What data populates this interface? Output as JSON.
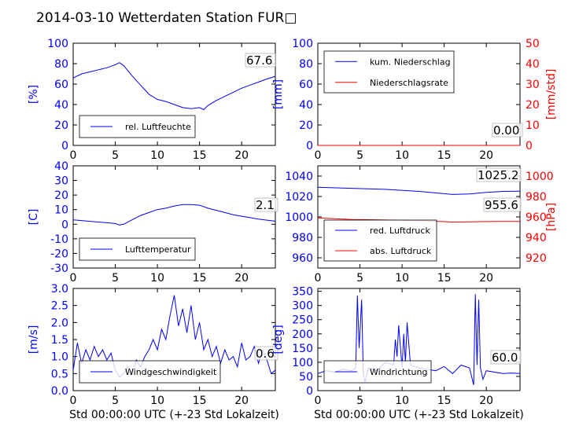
{
  "title": "2014-03-10 Wetterdaten Station FUR□",
  "chart_data": [
    {
      "id": "humidity",
      "type": "line",
      "ylabel": "[%]",
      "ylim": [
        0,
        100
      ],
      "yticks": [
        0,
        20,
        40,
        60,
        80,
        100
      ],
      "xlim": [
        0,
        24
      ],
      "xticks": [
        0,
        5,
        10,
        15,
        20
      ],
      "legend": "bottom-left",
      "last_value": "67.6",
      "series": [
        {
          "name": "rel. Luftfeuchte",
          "color": "#0000ff",
          "x": [
            0,
            1,
            2,
            3,
            4,
            5,
            5.5,
            6,
            7,
            8,
            9,
            10,
            11,
            12,
            13,
            14,
            15,
            15.5,
            16,
            17,
            18,
            19,
            20,
            21,
            22,
            23,
            24
          ],
          "y": [
            66,
            70,
            72,
            74,
            76,
            79,
            81,
            78,
            68,
            59,
            50,
            45,
            43,
            40,
            37,
            36,
            37,
            35,
            39,
            44,
            48,
            52,
            56,
            59,
            62,
            65,
            67.6
          ]
        }
      ]
    },
    {
      "id": "precip",
      "type": "line",
      "ylabel": "[mm]",
      "ylim": [
        0,
        100
      ],
      "yticks": [
        0,
        20,
        40,
        60,
        80,
        100
      ],
      "y2label": "[mm/std]",
      "y2lim": [
        0,
        50
      ],
      "y2ticks": [
        0,
        10,
        20,
        30,
        40,
        50
      ],
      "xlim": [
        0,
        24
      ],
      "xticks": [
        0,
        5,
        10,
        15,
        20
      ],
      "legend": "top-left",
      "last_value": "0.00",
      "series": [
        {
          "name": "kum. Niederschlag",
          "color": "#0000ff",
          "x": [
            0,
            24
          ],
          "y": [
            0,
            0
          ]
        },
        {
          "name": "Niederschlagsrate",
          "color": "#ff0000",
          "x": [
            0,
            24
          ],
          "y": [
            0,
            0
          ]
        }
      ]
    },
    {
      "id": "temperature",
      "type": "line",
      "ylabel": "[C]",
      "ylim": [
        -30,
        40
      ],
      "yticks": [
        -30,
        -20,
        -10,
        0,
        10,
        20,
        30,
        40
      ],
      "xlim": [
        0,
        24
      ],
      "xticks": [
        0,
        5,
        10,
        15,
        20
      ],
      "legend": "bottom-left",
      "last_value": "2.1",
      "series": [
        {
          "name": "Lufttemperatur",
          "color": "#0000ff",
          "x": [
            0,
            1,
            2,
            3,
            4,
            5,
            5.5,
            6,
            7,
            8,
            9,
            10,
            11,
            12,
            13,
            14,
            15,
            16,
            17,
            18,
            19,
            20,
            21,
            22,
            23,
            24
          ],
          "y": [
            3,
            2.5,
            2,
            1.5,
            1,
            0.5,
            -0.5,
            0,
            3,
            6,
            8,
            10,
            11,
            12.5,
            13.5,
            13.5,
            13,
            11,
            9.5,
            8,
            6.5,
            5.5,
            4.5,
            3.5,
            2.8,
            2.1
          ]
        }
      ]
    },
    {
      "id": "pressure",
      "type": "line",
      "ylabel": "",
      "ylim": [
        950,
        1050
      ],
      "yticks": [
        960,
        980,
        1000,
        1020,
        1040
      ],
      "y2label": "[hPa]",
      "y2lim": [
        910,
        1010
      ],
      "y2ticks": [
        920,
        940,
        960,
        980,
        1000
      ],
      "xlim": [
        0,
        24
      ],
      "xticks": [
        0,
        5,
        10,
        15,
        20
      ],
      "legend": "bottom-left",
      "last_values": [
        "1025.2",
        "955.6"
      ],
      "series": [
        {
          "name": "red. Luftdruck",
          "color": "#0000ff",
          "axis": "left",
          "x": [
            0,
            4,
            8,
            12,
            16,
            18,
            20,
            22,
            24
          ],
          "y": [
            1029,
            1028,
            1027,
            1025,
            1022,
            1022.5,
            1024,
            1025,
            1025.2
          ]
        },
        {
          "name": "abs. Luftdruck",
          "color": "#ff0000",
          "axis": "right",
          "x": [
            0,
            4,
            8,
            12,
            16,
            18,
            20,
            22,
            24
          ],
          "y": [
            959,
            957.5,
            957,
            956.5,
            955,
            955.2,
            955.5,
            955.6,
            955.6
          ]
        }
      ]
    },
    {
      "id": "windspeed",
      "type": "line",
      "ylabel": "[m/s]",
      "ylim": [
        0,
        3
      ],
      "yticks": [
        0.0,
        0.5,
        1.0,
        1.5,
        2.0,
        2.5,
        3.0
      ],
      "xlim": [
        0,
        24
      ],
      "xticks": [
        0,
        5,
        10,
        15,
        20
      ],
      "xlabel": "Std 00:00:00 UTC (+-23 Std Lokalzeit)",
      "legend": "bottom-left",
      "last_value": "0.6",
      "series": [
        {
          "name": "Windgeschwindigkeit",
          "color": "#0000ff",
          "x": [
            0,
            0.5,
            1,
            1.5,
            2,
            2.5,
            3,
            3.5,
            4,
            4.5,
            5,
            5.5,
            6,
            6.5,
            7,
            7.5,
            8,
            8.5,
            9,
            9.5,
            10,
            10.5,
            11,
            11.5,
            12,
            12.5,
            13,
            13.5,
            14,
            14.5,
            15,
            15.5,
            16,
            16.5,
            17,
            17.5,
            18,
            18.5,
            19,
            19.5,
            20,
            20.5,
            21,
            21.5,
            22,
            22.5,
            23,
            23.5,
            24
          ],
          "y": [
            0.6,
            1.4,
            0.8,
            1.2,
            0.9,
            1.3,
            1.0,
            1.2,
            0.9,
            1.1,
            0.6,
            0.4,
            0.5,
            0.7,
            0.5,
            0.9,
            0.7,
            1.0,
            1.2,
            1.5,
            1.2,
            1.8,
            1.5,
            2.2,
            2.8,
            1.9,
            2.4,
            1.7,
            2.5,
            1.5,
            2.0,
            1.2,
            1.5,
            1.0,
            1.3,
            0.8,
            1.2,
            0.9,
            1.0,
            0.7,
            1.4,
            0.9,
            1.0,
            1.3,
            0.8,
            1.2,
            0.9,
            0.5,
            0.6
          ]
        }
      ]
    },
    {
      "id": "winddir",
      "type": "line",
      "ylabel": "[deg]",
      "ylim": [
        0,
        360
      ],
      "yticks": [
        0,
        50,
        100,
        150,
        200,
        250,
        300,
        350
      ],
      "xlim": [
        0,
        24
      ],
      "xticks": [
        0,
        5,
        10,
        15,
        20
      ],
      "xlabel": "Std 00:00:00 UTC (+-23 Std Lokalzeit)",
      "legend": "bottom-left",
      "last_value": "60.0",
      "series": [
        {
          "name": "Windrichtung",
          "color": "#0000ff",
          "x": [
            0,
            1,
            2,
            3,
            4,
            4.5,
            4.7,
            4.9,
            5.2,
            5.4,
            5.6,
            6,
            7,
            8,
            9,
            9.2,
            9.4,
            9.6,
            10,
            10.2,
            10.4,
            10.6,
            11,
            12,
            13,
            14,
            15,
            16,
            17,
            18,
            18.5,
            18.7,
            18.9,
            19.1,
            19.3,
            19.6,
            20,
            21,
            22,
            23,
            24
          ],
          "y": [
            60,
            70,
            65,
            75,
            70,
            80,
            335,
            150,
            320,
            60,
            30,
            80,
            70,
            100,
            90,
            180,
            120,
            230,
            80,
            200,
            100,
            240,
            90,
            80,
            75,
            70,
            85,
            60,
            90,
            80,
            20,
            340,
            90,
            320,
            80,
            40,
            70,
            65,
            60,
            62,
            60
          ]
        }
      ]
    }
  ]
}
